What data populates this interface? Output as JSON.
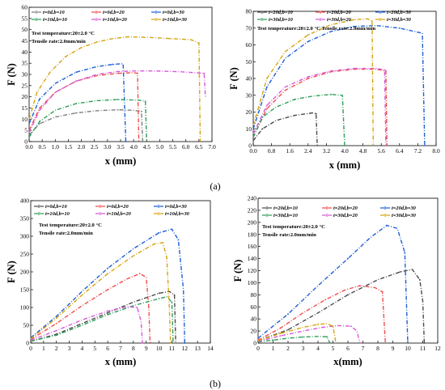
{
  "panel_labels": [
    "(a)",
    "(b)"
  ],
  "chart_data": [
    {
      "type": "line",
      "xlabel": "x (mm)",
      "ylabel": "F (N)",
      "xlim": [
        0,
        7
      ],
      "ylim": [
        0,
        60
      ],
      "xticks": [
        "0.0",
        "0.5",
        "1.0",
        "1.5",
        "2.0",
        "2.5",
        "3.0",
        "3.5",
        "4.0",
        "4.5",
        "5.0",
        "5.5",
        "6.0",
        "6.5",
        "7.0"
      ],
      "yticks": [
        "0",
        "5",
        "10",
        "15",
        "20",
        "25",
        "30",
        "35",
        "40",
        "45",
        "50",
        "55",
        "60"
      ],
      "annotations": [
        "Test temperature:20±2.0 °C",
        "Tensile rate:2.0mm/min"
      ],
      "legend_position": "top-left",
      "series": [
        {
          "name": "t=0d,b=10",
          "color": "#7f7f7f",
          "points": [
            [
              0,
              3
            ],
            [
              0.4,
              8
            ],
            [
              1,
              11
            ],
            [
              1.8,
              12.8
            ],
            [
              2.6,
              13.8
            ],
            [
              3.4,
              14.2
            ],
            [
              4.0,
              14
            ],
            [
              4.3,
              13.5
            ],
            [
              4.35,
              0
            ]
          ]
        },
        {
          "name": "t=0d,b=20",
          "color": "#ef4e4e",
          "points": [
            [
              0,
              5
            ],
            [
              0.4,
              15
            ],
            [
              1,
              22
            ],
            [
              1.8,
              27
            ],
            [
              2.6,
              29.5
            ],
            [
              3.4,
              30.5
            ],
            [
              4.0,
              30.8
            ],
            [
              4.15,
              30.5
            ],
            [
              4.2,
              0
            ]
          ]
        },
        {
          "name": "t=0d,b=30",
          "color": "#1f5fd6",
          "points": [
            [
              0,
              8
            ],
            [
              0.4,
              19
            ],
            [
              1,
              26
            ],
            [
              1.8,
              31
            ],
            [
              2.6,
              33.5
            ],
            [
              3.2,
              34.5
            ],
            [
              3.6,
              34.8
            ],
            [
              3.7,
              0
            ]
          ]
        },
        {
          "name": "t=10d,b=10",
          "color": "#2e9e5b",
          "points": [
            [
              0,
              2
            ],
            [
              0.4,
              9
            ],
            [
              1,
              14
            ],
            [
              1.8,
              17
            ],
            [
              2.6,
              18.3
            ],
            [
              3.4,
              18.8
            ],
            [
              4.2,
              18.5
            ],
            [
              4.45,
              18
            ],
            [
              4.5,
              0
            ]
          ]
        },
        {
          "name": "t=10d,b=20",
          "color": "#d65ad6",
          "points": [
            [
              0,
              4
            ],
            [
              0.4,
              14
            ],
            [
              1,
              22
            ],
            [
              1.8,
              27
            ],
            [
              2.6,
              30
            ],
            [
              3.4,
              31.3
            ],
            [
              4.2,
              31.6
            ],
            [
              5.0,
              31.5
            ],
            [
              5.8,
              31.2
            ],
            [
              6.7,
              30.5
            ],
            [
              6.75,
              20
            ]
          ]
        },
        {
          "name": "t=10d,b=30",
          "color": "#d4a40f",
          "points": [
            [
              0,
              10
            ],
            [
              0.3,
              22
            ],
            [
              0.8,
              31
            ],
            [
              1.4,
              38
            ],
            [
              2.0,
              42
            ],
            [
              2.6,
              44.5
            ],
            [
              3.2,
              46
            ],
            [
              3.8,
              46.8
            ],
            [
              4.6,
              46.5
            ],
            [
              5.4,
              46
            ],
            [
              6.2,
              45.5
            ],
            [
              6.5,
              44
            ],
            [
              6.55,
              0
            ]
          ]
        }
      ]
    },
    {
      "type": "line",
      "xlabel": "x (mm)",
      "ylabel": "F (N)",
      "xlim": [
        0,
        8
      ],
      "ylim": [
        0,
        80
      ],
      "xticks": [
        "0.0",
        "0.8",
        "1.6",
        "2.4",
        "3.2",
        "4.0",
        "4.8",
        "5.6",
        "6.4",
        "7.2",
        "8.0"
      ],
      "yticks": [
        "0",
        "10",
        "20",
        "30",
        "40",
        "50",
        "60",
        "70",
        "80"
      ],
      "annotations": [
        "Test temperature:20±2.0 °C",
        "Tensile rate:2.0mm/min"
      ],
      "legend_position": "top",
      "series": [
        {
          "name": "t=20d,b=10",
          "color": "#4a4a4a",
          "points": [
            [
              0,
              3
            ],
            [
              0.4,
              10
            ],
            [
              1.0,
              15
            ],
            [
              1.8,
              18
            ],
            [
              2.6,
              19.5
            ],
            [
              2.75,
              19
            ],
            [
              2.8,
              0
            ]
          ]
        },
        {
          "name": "t=20d,b=20",
          "color": "#ef4e4e",
          "points": [
            [
              0,
              5
            ],
            [
              0.6,
              22
            ],
            [
              1.4,
              33
            ],
            [
              2.4,
              40
            ],
            [
              3.4,
              44
            ],
            [
              4.4,
              45.5
            ],
            [
              5.4,
              45.5
            ],
            [
              5.8,
              44.5
            ],
            [
              5.85,
              0
            ]
          ]
        },
        {
          "name": "t=20d,b=30",
          "color": "#1f5fd6",
          "points": [
            [
              0,
              10
            ],
            [
              0.6,
              35
            ],
            [
              1.4,
              52
            ],
            [
              2.4,
              62
            ],
            [
              3.4,
              68
            ],
            [
              4.4,
              71
            ],
            [
              5.4,
              71.5
            ],
            [
              6.4,
              70
            ],
            [
              7.4,
              67
            ],
            [
              7.5,
              0
            ]
          ]
        },
        {
          "name": "t=30d,b=10",
          "color": "#2e9e5b",
          "points": [
            [
              0,
              5
            ],
            [
              0.4,
              17
            ],
            [
              1.0,
              23
            ],
            [
              1.8,
              27.5
            ],
            [
              2.6,
              29.5
            ],
            [
              3.4,
              30.5
            ],
            [
              3.9,
              30
            ],
            [
              4.0,
              0
            ]
          ]
        },
        {
          "name": "t=30d,b=20",
          "color": "#d65ad6",
          "points": [
            [
              0,
              7
            ],
            [
              0.6,
              24
            ],
            [
              1.4,
              35
            ],
            [
              2.4,
              41
            ],
            [
              3.4,
              44.5
            ],
            [
              4.4,
              46
            ],
            [
              5.4,
              46
            ],
            [
              5.75,
              45
            ],
            [
              5.8,
              0
            ]
          ]
        },
        {
          "name": "t=30d,b=30",
          "color": "#d4a40f",
          "points": [
            [
              0,
              12
            ],
            [
              0.6,
              40
            ],
            [
              1.4,
              56
            ],
            [
              2.4,
              66
            ],
            [
              3.4,
              72
            ],
            [
              4.4,
              75
            ],
            [
              5.0,
              75.5
            ],
            [
              5.2,
              74
            ],
            [
              5.25,
              0
            ]
          ]
        }
      ]
    },
    {
      "type": "line",
      "xlabel": "x (mm)",
      "ylabel": "F (N)",
      "xlim": [
        0,
        14
      ],
      "ylim": [
        0,
        400
      ],
      "xticks": [
        "0",
        "1",
        "2",
        "3",
        "4",
        "5",
        "6",
        "7",
        "8",
        "9",
        "10",
        "11",
        "12",
        "13",
        "14"
      ],
      "yticks": [
        "0",
        "50",
        "100",
        "150",
        "200",
        "250",
        "300",
        "350",
        "400"
      ],
      "annotations": [
        "Test temperature:20±2.0 °C",
        "Tensile rate:2.0mm/min"
      ],
      "legend_position": "top",
      "series": [
        {
          "name": "t=0d,b=10",
          "color": "#4a4a4a",
          "points": [
            [
              0,
              5
            ],
            [
              2,
              25
            ],
            [
              4,
              55
            ],
            [
              6,
              85
            ],
            [
              8,
              115
            ],
            [
              10,
              140
            ],
            [
              10.8,
              145
            ],
            [
              11.2,
              135
            ],
            [
              11.3,
              0
            ]
          ]
        },
        {
          "name": "t=0d,b=20",
          "color": "#ef4e4e",
          "points": [
            [
              0,
              10
            ],
            [
              2,
              55
            ],
            [
              4,
              105
            ],
            [
              6,
              150
            ],
            [
              7.5,
              180
            ],
            [
              8.5,
              195
            ],
            [
              9.0,
              185
            ],
            [
              9.2,
              100
            ],
            [
              9.3,
              0
            ]
          ]
        },
        {
          "name": "t=0d,b=30",
          "color": "#1f5fd6",
          "points": [
            [
              0,
              15
            ],
            [
              2,
              75
            ],
            [
              4,
              145
            ],
            [
              6,
              210
            ],
            [
              8,
              265
            ],
            [
              10,
              310
            ],
            [
              11,
              320
            ],
            [
              11.5,
              290
            ],
            [
              11.9,
              150
            ],
            [
              12.0,
              0
            ]
          ]
        },
        {
          "name": "t=10d,b=10",
          "color": "#2e9e5b",
          "points": [
            [
              0,
              5
            ],
            [
              2,
              22
            ],
            [
              4,
              50
            ],
            [
              6,
              80
            ],
            [
              8,
              105
            ],
            [
              10,
              125
            ],
            [
              10.6,
              130
            ],
            [
              11.0,
              115
            ],
            [
              11.1,
              0
            ]
          ]
        },
        {
          "name": "t=10d,b=20",
          "color": "#d65ad6",
          "points": [
            [
              0,
              8
            ],
            [
              2,
              35
            ],
            [
              4,
              65
            ],
            [
              6,
              90
            ],
            [
              7.5,
              102
            ],
            [
              8.3,
              100
            ],
            [
              8.6,
              60
            ],
            [
              8.7,
              0
            ]
          ]
        },
        {
          "name": "t=10d,b=30",
          "color": "#d4a40f",
          "points": [
            [
              0,
              12
            ],
            [
              2,
              70
            ],
            [
              4,
              135
            ],
            [
              6,
              195
            ],
            [
              8,
              245
            ],
            [
              9.6,
              278
            ],
            [
              10.3,
              282
            ],
            [
              10.6,
              240
            ],
            [
              10.8,
              100
            ],
            [
              10.9,
              0
            ]
          ]
        }
      ]
    },
    {
      "type": "line",
      "xlabel": "x(mm)",
      "ylabel": "F (N)",
      "xlim": [
        0,
        12
      ],
      "ylim": [
        0,
        240
      ],
      "xticks": [
        "0",
        "1",
        "2",
        "3",
        "4",
        "5",
        "6",
        "7",
        "8",
        "9",
        "10",
        "11",
        "12"
      ],
      "yticks": [
        "0",
        "20",
        "40",
        "60",
        "80",
        "100",
        "120",
        "140",
        "160",
        "180",
        "200",
        "220",
        "240"
      ],
      "annotations": [
        "Test temperature:20±2.0 °C",
        "Tensile rate:2.0mm/min"
      ],
      "legend_position": "top",
      "series": [
        {
          "name": "t=20d,b=10",
          "color": "#4a4a4a",
          "points": [
            [
              0,
              4
            ],
            [
              2,
              22
            ],
            [
              4,
              50
            ],
            [
              6,
              80
            ],
            [
              8,
              105
            ],
            [
              9.5,
              118
            ],
            [
              10.3,
              122
            ],
            [
              10.8,
              105
            ],
            [
              11.0,
              70
            ],
            [
              11.1,
              0
            ]
          ]
        },
        {
          "name": "t=20d,b=20",
          "color": "#ef4e4e",
          "points": [
            [
              0,
              5
            ],
            [
              1.5,
              25
            ],
            [
              3,
              50
            ],
            [
              4.5,
              72
            ],
            [
              5.8,
              88
            ],
            [
              6.8,
              95
            ],
            [
              7.8,
              92
            ],
            [
              8.3,
              85
            ],
            [
              8.5,
              0
            ]
          ]
        },
        {
          "name": "t=20d,b=30",
          "color": "#1f5fd6",
          "points": [
            [
              0,
              8
            ],
            [
              2,
              48
            ],
            [
              4,
              95
            ],
            [
              6,
              140
            ],
            [
              7.5,
              175
            ],
            [
              8.6,
              195
            ],
            [
              9.3,
              190
            ],
            [
              9.8,
              150
            ],
            [
              10.0,
              0
            ]
          ]
        },
        {
          "name": "t=30d,b=10",
          "color": "#2e9e5b",
          "points": [
            [
              0,
              2
            ],
            [
              1,
              5
            ],
            [
              2,
              8
            ],
            [
              3,
              10
            ],
            [
              4,
              11
            ],
            [
              4.6,
              10.5
            ],
            [
              4.8,
              0
            ]
          ]
        },
        {
          "name": "t=30d,b=20",
          "color": "#d65ad6",
          "points": [
            [
              0,
              3
            ],
            [
              1.5,
              12
            ],
            [
              3,
              20
            ],
            [
              4.3,
              26
            ],
            [
              5.3,
              29
            ],
            [
              6.2,
              28
            ],
            [
              6.6,
              20
            ],
            [
              6.8,
              0
            ]
          ]
        },
        {
          "name": "t=30d,b=30",
          "color": "#d4a40f",
          "points": [
            [
              0,
              4
            ],
            [
              1.5,
              16
            ],
            [
              3,
              26
            ],
            [
              4.0,
              31
            ],
            [
              4.6,
              32
            ],
            [
              5.0,
              28
            ],
            [
              5.2,
              0
            ]
          ]
        }
      ]
    }
  ]
}
